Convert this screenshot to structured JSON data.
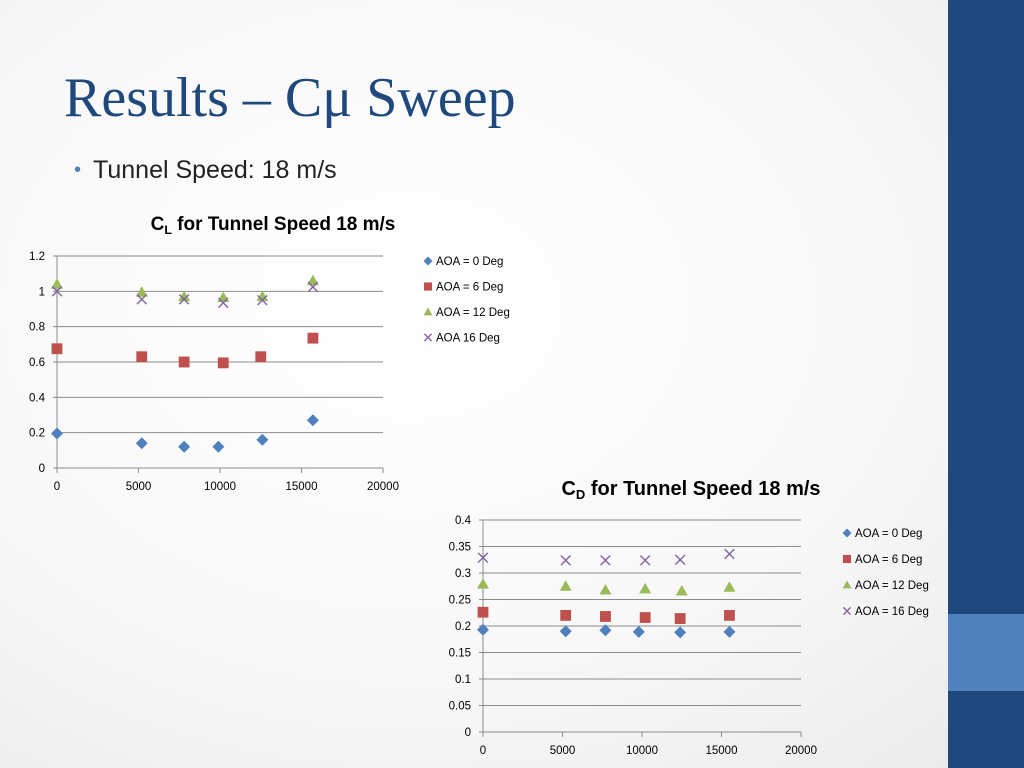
{
  "slide": {
    "title": "Results – Cμ Sweep",
    "bullet": "Tunnel Speed: 18 m/s"
  },
  "colors": {
    "series": [
      "#4f81bd",
      "#c0504d",
      "#9bbb59",
      "#8064a2"
    ],
    "grid": "#8c8c8c",
    "sidebar": "#1f497d",
    "sidebar_accent": "#4f81bd",
    "title": "#1f497d"
  },
  "chart_data": [
    {
      "type": "scatter",
      "title_main": "C",
      "title_sub": "L",
      "title_rest": " for Tunnel Speed 18 m/s",
      "xlim": [
        0,
        20000
      ],
      "ylim": [
        0,
        1.2
      ],
      "xticks": [
        "0",
        "5000",
        "10000",
        "15000",
        "20000"
      ],
      "yticks": [
        "0",
        "0.2",
        "0.4",
        "0.6",
        "0.8",
        "1",
        "1.2"
      ],
      "grid": "horizontal",
      "legend_position": "right",
      "series": [
        {
          "name": "AOA = 0 Deg",
          "marker": "diamond",
          "x": [
            0,
            5200,
            7800,
            9900,
            12600,
            15700
          ],
          "y": [
            0.195,
            0.14,
            0.12,
            0.12,
            0.16,
            0.27
          ]
        },
        {
          "name": "AOA = 6 Deg",
          "marker": "square",
          "x": [
            0,
            5200,
            7800,
            10200,
            12500,
            15700
          ],
          "y": [
            0.675,
            0.63,
            0.6,
            0.595,
            0.63,
            0.735
          ]
        },
        {
          "name": "AOA = 12 Deg",
          "marker": "triangle",
          "x": [
            0,
            5200,
            7800,
            10200,
            12600,
            15700
          ],
          "y": [
            1.04,
            0.995,
            0.97,
            0.965,
            0.97,
            1.06
          ]
        },
        {
          "name": "AOA 16 Deg",
          "marker": "x",
          "x": [
            0,
            5200,
            7800,
            10200,
            12600,
            15700
          ],
          "y": [
            1.0,
            0.955,
            0.955,
            0.935,
            0.95,
            1.025
          ]
        }
      ]
    },
    {
      "type": "scatter",
      "title_main": "C",
      "title_sub": "D",
      "title_rest": " for Tunnel Speed 18 m/s",
      "xlim": [
        0,
        20000
      ],
      "ylim": [
        0,
        0.4
      ],
      "xticks": [
        "0",
        "5000",
        "10000",
        "15000",
        "20000"
      ],
      "yticks": [
        "0",
        "0.05",
        "0.1",
        "0.15",
        "0.2",
        "0.25",
        "0.3",
        "0.35",
        "0.4"
      ],
      "grid": "horizontal",
      "legend_position": "right",
      "series": [
        {
          "name": "AOA = 0 Deg",
          "marker": "diamond",
          "x": [
            0,
            5200,
            7700,
            9800,
            12400,
            15500
          ],
          "y": [
            0.193,
            0.19,
            0.192,
            0.189,
            0.188,
            0.189
          ]
        },
        {
          "name": "AOA = 6 Deg",
          "marker": "square",
          "x": [
            0,
            5200,
            7700,
            10200,
            12400,
            15500
          ],
          "y": [
            0.226,
            0.22,
            0.218,
            0.216,
            0.214,
            0.22
          ]
        },
        {
          "name": "AOA = 12 Deg",
          "marker": "triangle",
          "x": [
            0,
            5200,
            7700,
            10200,
            12500,
            15500
          ],
          "y": [
            0.279,
            0.275,
            0.268,
            0.27,
            0.266,
            0.273
          ]
        },
        {
          "name": "AOA = 16 Deg",
          "marker": "x",
          "x": [
            0,
            5200,
            7700,
            10200,
            12400,
            15500
          ],
          "y": [
            0.329,
            0.324,
            0.324,
            0.324,
            0.325,
            0.336
          ]
        }
      ]
    }
  ]
}
